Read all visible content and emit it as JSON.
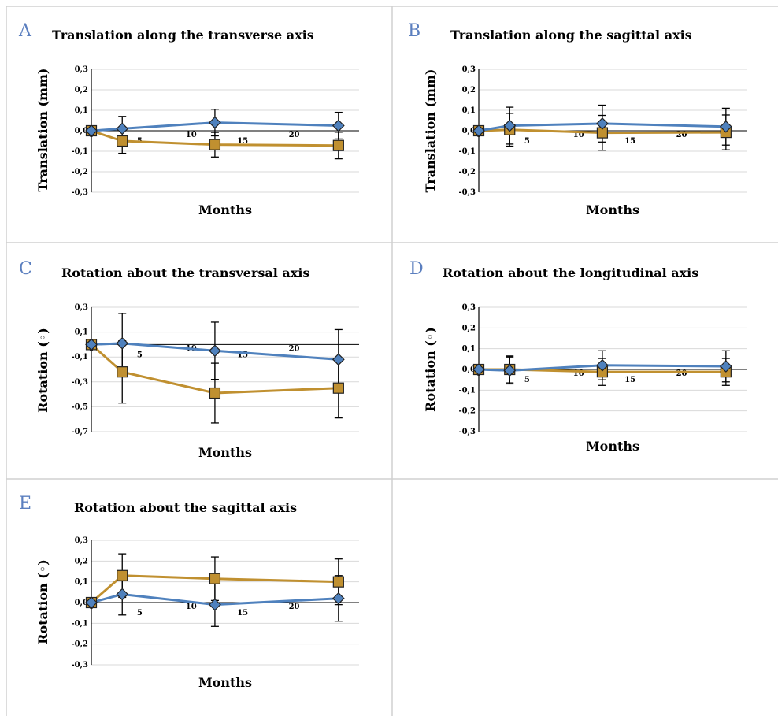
{
  "colors": {
    "series_a": "#4f81bd",
    "series_b": "#c09030",
    "grid": "#d9d9d9",
    "border": "#d0d0d0",
    "letter": "#5b7fbf"
  },
  "panels": [
    {
      "letter": "A"
    },
    {
      "letter": "B"
    },
    {
      "letter": "C"
    },
    {
      "letter": "D"
    },
    {
      "letter": "E"
    }
  ],
  "chart_data": [
    {
      "type": "line",
      "title": "Translation along the transverse axis",
      "xlabel": "Months",
      "ylabel": "Translation (mm)",
      "ylim": [
        -0.3,
        0.3
      ],
      "xlim": [
        0,
        26
      ],
      "yticks": [
        0.3,
        0.2,
        0.1,
        0.0,
        -0.1,
        -0.2,
        -0.3
      ],
      "ytick_labels": [
        "0,3",
        "0,2",
        "0,1",
        "0,0",
        "-0,1",
        "-0,2",
        "-0,3"
      ],
      "xticks": [
        0,
        5,
        10,
        15,
        20
      ],
      "grid": true,
      "series": [
        {
          "marker": "diamond",
          "x": [
            0,
            3,
            12,
            24
          ],
          "y": [
            0.0,
            0.01,
            0.04,
            0.025
          ],
          "err": [
            0,
            0.06,
            0.065,
            0.065
          ]
        },
        {
          "marker": "square",
          "x": [
            0,
            3,
            12,
            24
          ],
          "y": [
            0.0,
            -0.05,
            -0.068,
            -0.072
          ],
          "err": [
            0,
            0.06,
            0.06,
            0.065
          ]
        }
      ]
    },
    {
      "type": "line",
      "title": "Translation along the sagittal axis",
      "xlabel": "Months",
      "ylabel": "Translation (mm)",
      "ylim": [
        -0.3,
        0.3
      ],
      "xlim": [
        0,
        26
      ],
      "yticks": [
        0.3,
        0.2,
        0.1,
        0.0,
        -0.1,
        -0.2,
        -0.3
      ],
      "ytick_labels": [
        "0,3",
        "0,2",
        "0,1",
        "0,0",
        "-0,1",
        "-0,2",
        "-0,3"
      ],
      "xticks": [
        0,
        5,
        10,
        15,
        20
      ],
      "grid": true,
      "series": [
        {
          "marker": "diamond",
          "x": [
            0,
            3,
            12,
            24
          ],
          "y": [
            0.0,
            0.025,
            0.035,
            0.02
          ],
          "err": [
            0,
            0.09,
            0.09,
            0.09
          ]
        },
        {
          "marker": "square",
          "x": [
            0,
            3,
            12,
            24
          ],
          "y": [
            0.0,
            0.005,
            -0.01,
            -0.008
          ],
          "err": [
            0,
            0.08,
            0.085,
            0.085
          ]
        }
      ]
    },
    {
      "type": "line",
      "title": "Rotation about the transversal axis",
      "xlabel": "Months",
      "ylabel": "Rotation (◦)",
      "ylim": [
        -0.7,
        0.3
      ],
      "xlim": [
        0,
        26
      ],
      "yticks": [
        0.3,
        0.1,
        -0.1,
        -0.3,
        -0.5,
        -0.7
      ],
      "ytick_labels": [
        "0,3",
        "0,1",
        "-0,1",
        "-0,3",
        "-0,5",
        "-0,7"
      ],
      "xticks": [
        0,
        5,
        10,
        15,
        20
      ],
      "grid": true,
      "series": [
        {
          "marker": "diamond",
          "x": [
            0,
            3,
            12,
            24
          ],
          "y": [
            0.0,
            0.01,
            -0.05,
            -0.12
          ],
          "err": [
            0,
            0.24,
            0.23,
            0.24
          ]
        },
        {
          "marker": "square",
          "x": [
            0,
            3,
            12,
            24
          ],
          "y": [
            0.0,
            -0.22,
            -0.39,
            -0.35
          ],
          "err": [
            0,
            0.25,
            0.24,
            0.24
          ]
        }
      ]
    },
    {
      "type": "line",
      "title": "Rotation about the longitudinal axis",
      "xlabel": "Months",
      "ylabel": "Rotation (◦)",
      "ylim": [
        -0.3,
        0.3
      ],
      "xlim": [
        0,
        26
      ],
      "yticks": [
        0.3,
        0.2,
        0.1,
        0.0,
        -0.1,
        -0.2,
        -0.3
      ],
      "ytick_labels": [
        "0,3",
        "0,2",
        "0,1",
        "0,0",
        "-0,1",
        "-0,2",
        "-0,3"
      ],
      "xticks": [
        0,
        5,
        10,
        15,
        20
      ],
      "grid": true,
      "series": [
        {
          "marker": "diamond",
          "x": [
            0,
            3,
            12,
            24
          ],
          "y": [
            0.0,
            -0.005,
            0.02,
            0.015
          ],
          "err": [
            0,
            0.065,
            0.07,
            0.075
          ]
        },
        {
          "marker": "square",
          "x": [
            0,
            3,
            12,
            24
          ],
          "y": [
            0.0,
            0.0,
            -0.012,
            -0.012
          ],
          "err": [
            0,
            0.065,
            0.065,
            0.065
          ]
        }
      ]
    },
    {
      "type": "line",
      "title": "Rotation about the sagittal axis",
      "xlabel": "Months",
      "ylabel": "Rotation (◦)",
      "ylim": [
        -0.3,
        0.3
      ],
      "xlim": [
        0,
        26
      ],
      "yticks": [
        0.3,
        0.2,
        0.1,
        0.0,
        -0.1,
        -0.2,
        -0.3
      ],
      "ytick_labels": [
        "0,3",
        "0,2",
        "0,1",
        "0,0",
        "-0,1",
        "-0,2",
        "-0,3"
      ],
      "xticks": [
        0,
        5,
        10,
        15,
        20
      ],
      "grid": true,
      "series": [
        {
          "marker": "diamond",
          "x": [
            0,
            3,
            12,
            24
          ],
          "y": [
            0.0,
            0.04,
            -0.01,
            0.02
          ],
          "err": [
            0,
            0.1,
            0.105,
            0.11
          ]
        },
        {
          "marker": "square",
          "x": [
            0,
            3,
            12,
            24
          ],
          "y": [
            0.0,
            0.13,
            0.115,
            0.1
          ],
          "err": [
            0,
            0.105,
            0.105,
            0.11
          ]
        }
      ]
    }
  ]
}
